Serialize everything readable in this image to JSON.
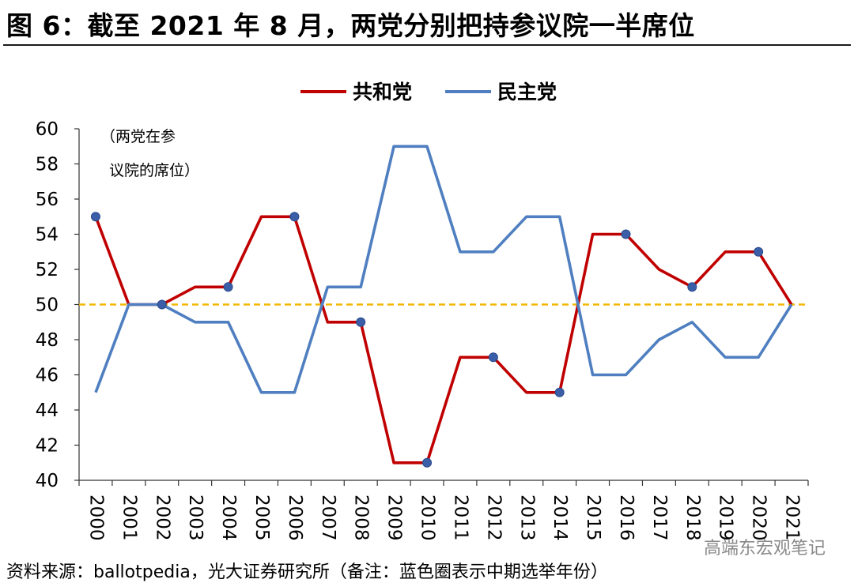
{
  "title": "图 6：截至 2021 年 8 月，两党分别把持参议院一半席位",
  "source": "资料来源：ballotpedia，光大证券研究所（备注：蓝色圈表示中期选举年份）",
  "watermark": "高端东宏观笔记",
  "annotation": [
    "（两党在参",
    "议院的席位）"
  ],
  "chart_data": {
    "type": "line",
    "categories": [
      "2000",
      "2001",
      "2002",
      "2003",
      "2004",
      "2005",
      "2006",
      "2007",
      "2008",
      "2009",
      "2010",
      "2011",
      "2012",
      "2013",
      "2014",
      "2015",
      "2016",
      "2017",
      "2018",
      "2019",
      "2020",
      "2021"
    ],
    "tick_labels": [
      "2000",
      "2001",
      "2002",
      "2003",
      "2004",
      "2005",
      "2006",
      "2007",
      "2008",
      "2009",
      "2010",
      "2011",
      "2012",
      "2013",
      "2014",
      "2015",
      "2016",
      "2017",
      "2018",
      "2019",
      "2020",
      "2021"
    ],
    "series": [
      {
        "name": "共和党",
        "color": "#c00000",
        "values": [
          55,
          50,
          50,
          51,
          51,
          55,
          55,
          49,
          49,
          41,
          41,
          47,
          47,
          45,
          45,
          54,
          54,
          52,
          51,
          53,
          53,
          50
        ]
      },
      {
        "name": "民主党",
        "color": "#4f7fc0",
        "values": [
          45,
          50,
          50,
          49,
          49,
          45,
          45,
          51,
          51,
          59,
          59,
          53,
          53,
          55,
          55,
          46,
          46,
          48,
          49,
          47,
          47,
          50
        ]
      }
    ],
    "markers": {
      "series": "共和党",
      "color": "#3a5fa8",
      "note": "蓝色圈表示中期选举年份",
      "points": [
        {
          "x": 0,
          "y": 55
        },
        {
          "x": 2,
          "y": 50
        },
        {
          "x": 4,
          "y": 51
        },
        {
          "x": 6,
          "y": 55
        },
        {
          "x": 8,
          "y": 49
        },
        {
          "x": 10,
          "y": 41
        },
        {
          "x": 12,
          "y": 47
        },
        {
          "x": 14,
          "y": 45
        },
        {
          "x": 16,
          "y": 54
        },
        {
          "x": 18,
          "y": 51
        },
        {
          "x": 20,
          "y": 53
        }
      ]
    },
    "reference_line": {
      "y": 50,
      "color": "#f2b700",
      "style": "dashed"
    },
    "ylim": [
      40,
      60
    ],
    "yticks": [
      40,
      42,
      44,
      46,
      48,
      50,
      52,
      54,
      56,
      58,
      60
    ],
    "grid": false,
    "legend": "top-center"
  }
}
